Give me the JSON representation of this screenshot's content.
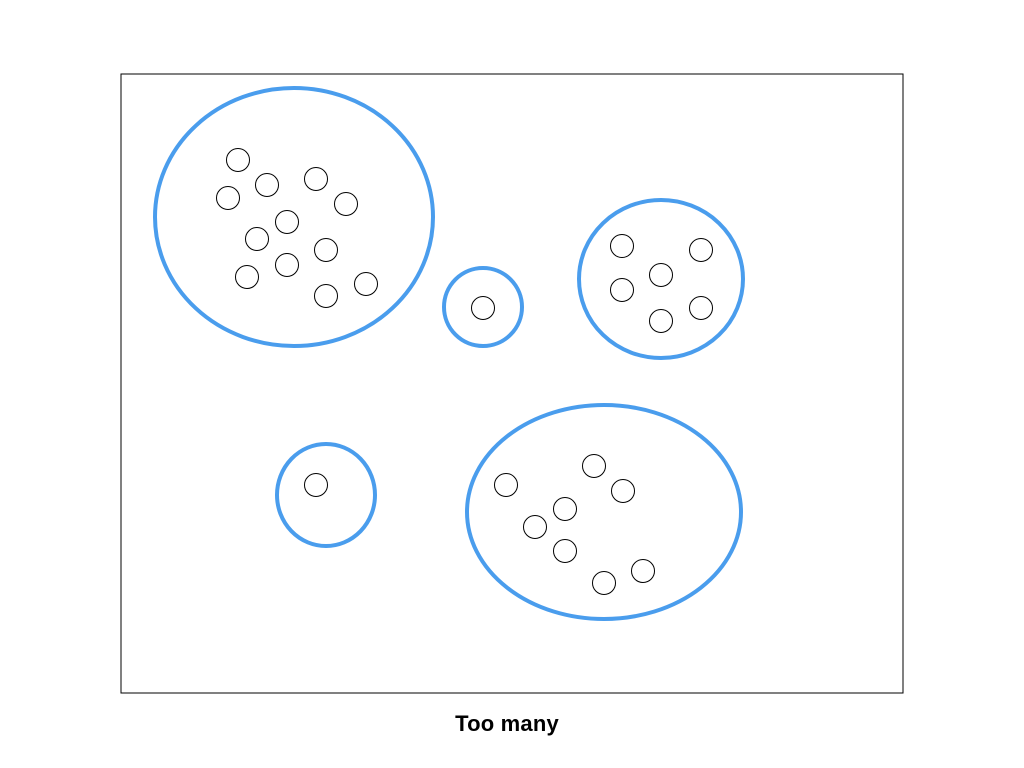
{
  "caption": "Too many",
  "colors": {
    "frame": "#000000",
    "cluster": "#4a9ded",
    "point": "#000000",
    "background": "#ffffff"
  },
  "diagram": {
    "description_type": "clustering",
    "cluster_count": 5,
    "clusters": [
      {
        "id": "cluster-1",
        "point_count": 12
      },
      {
        "id": "cluster-2",
        "point_count": 1
      },
      {
        "id": "cluster-3",
        "point_count": 6
      },
      {
        "id": "cluster-4",
        "point_count": 1
      },
      {
        "id": "cluster-5",
        "point_count": 8
      }
    ]
  }
}
